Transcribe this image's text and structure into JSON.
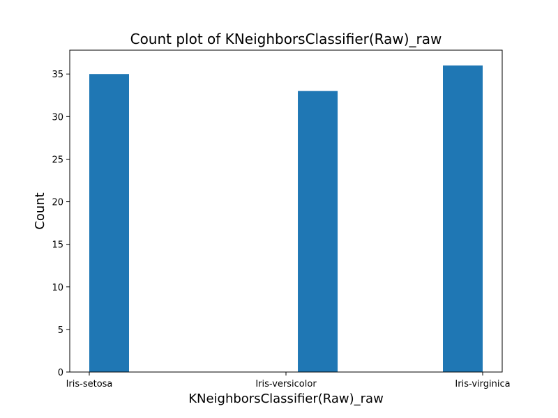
{
  "chart_data": {
    "type": "bar",
    "title": "Count plot of KNeighborsClassifier(Raw)_raw",
    "xlabel": "KNeighborsClassifier(Raw)_raw",
    "ylabel": "Count",
    "categories": [
      "Iris-setosa",
      "Iris-versicolor",
      "Iris-virginica"
    ],
    "category_positions": [
      0.0,
      1.11,
      1.91
    ],
    "values": [
      35,
      33,
      36
    ],
    "xlim": [
      -0.1,
      2.01
    ],
    "ylim": [
      0,
      37.8
    ],
    "yticks": [
      0,
      5,
      10,
      15,
      20,
      25,
      30,
      35
    ],
    "bar_color": "#1f77b4",
    "grid": false,
    "legend": "none"
  }
}
